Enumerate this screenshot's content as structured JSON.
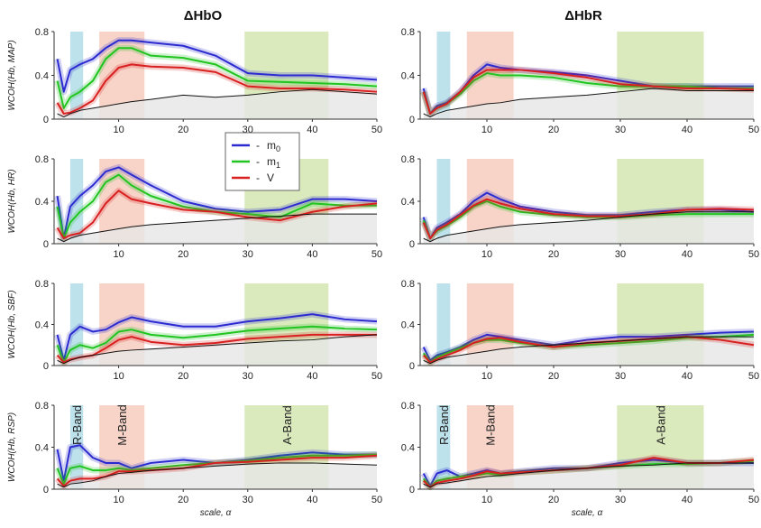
{
  "colors": {
    "m0": "#2b2bd0",
    "m1": "#22c422",
    "v": "#d82020",
    "base": "#111111",
    "r_band": "#a8d8e6",
    "m_band": "#f5c5b5",
    "a_band": "#cde3a7"
  },
  "chart_data": {
    "type": "line",
    "x_range": [
      0,
      50
    ],
    "y_range": [
      0,
      0.8
    ],
    "x_ticks": [
      "10",
      "20",
      "30",
      "40",
      "50"
    ],
    "y_ticks": [
      "0",
      "0.4",
      "0.8"
    ],
    "xlabel": "scale, α",
    "bands": [
      {
        "label": "R-Band",
        "from": 2.5,
        "to": 4.5,
        "color_key": "r_band"
      },
      {
        "label": "M-Band",
        "from": 7,
        "to": 14,
        "color_key": "m_band"
      },
      {
        "label": "A-Band",
        "from": 29.5,
        "to": 42.5,
        "color_key": "a_band"
      }
    ],
    "legend": [
      {
        "key": "m0",
        "label": "m"
      },
      {
        "key": "m1",
        "label": "m"
      },
      {
        "key": "v",
        "label": "V"
      }
    ],
    "legend_subscripts": [
      "0",
      "1"
    ],
    "legend_dash": "-",
    "x": [
      0.5,
      1.5,
      2.5,
      4,
      6,
      8,
      10,
      12,
      15,
      20,
      25,
      30,
      35,
      40,
      45,
      50
    ],
    "columns": [
      "ΔHbO",
      "ΔHbR"
    ],
    "rows": [
      "WCOH(Hb, MAP)",
      "WCOH(Hb, HR)",
      "WCOH(Hb, SBF)",
      "WCOH(Hb, RSP)"
    ],
    "panels": [
      {
        "row": 0,
        "col": 0,
        "series": {
          "m0": [
            0.55,
            0.25,
            0.45,
            0.5,
            0.55,
            0.65,
            0.72,
            0.72,
            0.7,
            0.67,
            0.58,
            0.42,
            0.4,
            0.4,
            0.38,
            0.36
          ],
          "m1": [
            0.35,
            0.1,
            0.2,
            0.25,
            0.35,
            0.55,
            0.65,
            0.65,
            0.58,
            0.56,
            0.5,
            0.35,
            0.34,
            0.33,
            0.32,
            0.3
          ],
          "v": [
            0.15,
            0.05,
            0.06,
            0.1,
            0.17,
            0.35,
            0.47,
            0.5,
            0.48,
            0.47,
            0.43,
            0.3,
            0.28,
            0.28,
            0.27,
            0.25
          ],
          "base": [
            0.05,
            0.02,
            0.05,
            0.08,
            0.1,
            0.12,
            0.14,
            0.16,
            0.18,
            0.22,
            0.2,
            0.22,
            0.25,
            0.27,
            0.25,
            0.23
          ]
        }
      },
      {
        "row": 0,
        "col": 1,
        "series": {
          "m0": [
            0.28,
            0.05,
            0.12,
            0.15,
            0.25,
            0.4,
            0.5,
            0.47,
            0.45,
            0.43,
            0.4,
            0.35,
            0.3,
            0.3,
            0.3,
            0.3
          ],
          "m1": [
            0.25,
            0.05,
            0.1,
            0.14,
            0.23,
            0.35,
            0.42,
            0.4,
            0.4,
            0.38,
            0.33,
            0.3,
            0.3,
            0.3,
            0.28,
            0.28
          ],
          "v": [
            0.25,
            0.05,
            0.1,
            0.14,
            0.25,
            0.38,
            0.45,
            0.45,
            0.45,
            0.42,
            0.38,
            0.32,
            0.3,
            0.28,
            0.28,
            0.27
          ],
          "base": [
            0.05,
            0.02,
            0.05,
            0.08,
            0.1,
            0.12,
            0.14,
            0.15,
            0.18,
            0.2,
            0.22,
            0.25,
            0.28,
            0.26,
            0.26,
            0.26
          ]
        }
      },
      {
        "row": 1,
        "col": 0,
        "series": {
          "m0": [
            0.45,
            0.05,
            0.35,
            0.45,
            0.55,
            0.68,
            0.72,
            0.65,
            0.55,
            0.4,
            0.33,
            0.3,
            0.32,
            0.42,
            0.42,
            0.4
          ],
          "m1": [
            0.35,
            0.05,
            0.2,
            0.3,
            0.4,
            0.58,
            0.65,
            0.55,
            0.45,
            0.35,
            0.3,
            0.28,
            0.25,
            0.38,
            0.36,
            0.36
          ],
          "v": [
            0.15,
            0.05,
            0.08,
            0.1,
            0.2,
            0.38,
            0.5,
            0.42,
            0.38,
            0.32,
            0.3,
            0.25,
            0.22,
            0.3,
            0.35,
            0.38
          ],
          "base": [
            0.05,
            0.02,
            0.05,
            0.08,
            0.1,
            0.12,
            0.14,
            0.16,
            0.18,
            0.2,
            0.22,
            0.24,
            0.26,
            0.28,
            0.28,
            0.28
          ]
        }
      },
      {
        "row": 1,
        "col": 1,
        "series": {
          "m0": [
            0.25,
            0.05,
            0.15,
            0.2,
            0.28,
            0.4,
            0.48,
            0.42,
            0.35,
            0.3,
            0.27,
            0.27,
            0.3,
            0.32,
            0.32,
            0.3
          ],
          "m1": [
            0.22,
            0.05,
            0.12,
            0.17,
            0.25,
            0.35,
            0.4,
            0.35,
            0.3,
            0.27,
            0.25,
            0.25,
            0.27,
            0.28,
            0.28,
            0.28
          ],
          "v": [
            0.2,
            0.05,
            0.13,
            0.18,
            0.27,
            0.36,
            0.42,
            0.38,
            0.33,
            0.28,
            0.26,
            0.26,
            0.28,
            0.32,
            0.33,
            0.32
          ],
          "base": [
            0.05,
            0.02,
            0.05,
            0.08,
            0.1,
            0.12,
            0.14,
            0.16,
            0.18,
            0.2,
            0.22,
            0.25,
            0.28,
            0.3,
            0.3,
            0.3
          ]
        }
      },
      {
        "row": 2,
        "col": 0,
        "series": {
          "m0": [
            0.3,
            0.05,
            0.3,
            0.38,
            0.33,
            0.35,
            0.42,
            0.47,
            0.43,
            0.38,
            0.38,
            0.43,
            0.46,
            0.5,
            0.45,
            0.43
          ],
          "m1": [
            0.2,
            0.03,
            0.15,
            0.2,
            0.17,
            0.22,
            0.33,
            0.35,
            0.3,
            0.27,
            0.3,
            0.34,
            0.36,
            0.38,
            0.36,
            0.35
          ],
          "v": [
            0.1,
            0.03,
            0.06,
            0.08,
            0.1,
            0.17,
            0.25,
            0.28,
            0.23,
            0.2,
            0.22,
            0.26,
            0.28,
            0.3,
            0.3,
            0.3
          ],
          "base": [
            0.05,
            0.02,
            0.05,
            0.08,
            0.1,
            0.12,
            0.14,
            0.15,
            0.16,
            0.18,
            0.2,
            0.22,
            0.24,
            0.25,
            0.28,
            0.3
          ]
        }
      },
      {
        "row": 2,
        "col": 1,
        "series": {
          "m0": [
            0.18,
            0.05,
            0.1,
            0.13,
            0.18,
            0.25,
            0.3,
            0.28,
            0.25,
            0.2,
            0.25,
            0.28,
            0.28,
            0.3,
            0.32,
            0.33
          ],
          "m1": [
            0.12,
            0.03,
            0.08,
            0.12,
            0.17,
            0.22,
            0.25,
            0.25,
            0.22,
            0.18,
            0.2,
            0.22,
            0.24,
            0.27,
            0.28,
            0.3
          ],
          "v": [
            0.1,
            0.03,
            0.06,
            0.1,
            0.15,
            0.22,
            0.26,
            0.27,
            0.23,
            0.18,
            0.22,
            0.24,
            0.26,
            0.28,
            0.25,
            0.2
          ],
          "base": [
            0.05,
            0.02,
            0.05,
            0.08,
            0.1,
            0.12,
            0.14,
            0.16,
            0.18,
            0.2,
            0.22,
            0.24,
            0.26,
            0.28,
            0.28,
            0.28
          ]
        }
      },
      {
        "row": 3,
        "col": 0,
        "series": {
          "m0": [
            0.38,
            0.08,
            0.4,
            0.42,
            0.3,
            0.25,
            0.25,
            0.2,
            0.25,
            0.28,
            0.25,
            0.28,
            0.32,
            0.35,
            0.33,
            0.33
          ],
          "m1": [
            0.2,
            0.05,
            0.2,
            0.22,
            0.18,
            0.18,
            0.2,
            0.18,
            0.2,
            0.23,
            0.25,
            0.27,
            0.3,
            0.32,
            0.32,
            0.33
          ],
          "v": [
            0.1,
            0.03,
            0.08,
            0.1,
            0.1,
            0.12,
            0.17,
            0.17,
            0.18,
            0.2,
            0.25,
            0.26,
            0.28,
            0.3,
            0.3,
            0.32
          ],
          "base": [
            0.05,
            0.02,
            0.05,
            0.06,
            0.08,
            0.12,
            0.15,
            0.16,
            0.18,
            0.2,
            0.22,
            0.24,
            0.25,
            0.25,
            0.24,
            0.23
          ]
        }
      },
      {
        "row": 3,
        "col": 1,
        "series": {
          "m0": [
            0.15,
            0.03,
            0.15,
            0.18,
            0.12,
            0.15,
            0.18,
            0.15,
            0.17,
            0.2,
            0.2,
            0.25,
            0.28,
            0.25,
            0.25,
            0.25
          ],
          "m1": [
            0.1,
            0.02,
            0.08,
            0.1,
            0.12,
            0.13,
            0.15,
            0.14,
            0.16,
            0.18,
            0.2,
            0.22,
            0.24,
            0.24,
            0.25,
            0.27
          ],
          "v": [
            0.08,
            0.02,
            0.06,
            0.08,
            0.1,
            0.13,
            0.17,
            0.15,
            0.16,
            0.18,
            0.2,
            0.23,
            0.3,
            0.25,
            0.25,
            0.28
          ],
          "base": [
            0.05,
            0.02,
            0.05,
            0.06,
            0.08,
            0.1,
            0.12,
            0.13,
            0.15,
            0.18,
            0.2,
            0.22,
            0.23,
            0.25,
            0.25,
            0.25
          ]
        }
      }
    ]
  }
}
